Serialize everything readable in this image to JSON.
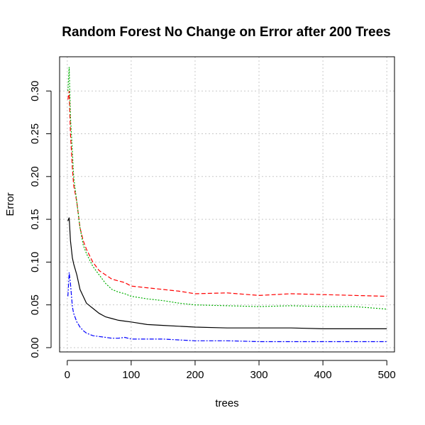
{
  "chart_data": {
    "type": "line",
    "title": "Random Forest No Change on Error after 200 Trees",
    "xlabel": "trees",
    "ylabel": "Error",
    "xlim": [
      -12,
      512
    ],
    "ylim": [
      -0.005,
      0.34
    ],
    "x_ticks": [
      0,
      100,
      200,
      300,
      400,
      500
    ],
    "x_tick_labels": [
      "0",
      "100",
      "200",
      "300",
      "400",
      "500"
    ],
    "y_ticks": [
      0.0,
      0.05,
      0.1,
      0.15,
      0.2,
      0.25,
      0.3
    ],
    "y_tick_labels": [
      "0.00",
      "0.05",
      "0.10",
      "0.15",
      "0.20",
      "0.25",
      "0.30"
    ],
    "grid": true,
    "series": [
      {
        "color": "#000000",
        "dash": "solid",
        "x": [
          1,
          3,
          5,
          8,
          10,
          15,
          20,
          25,
          30,
          40,
          50,
          60,
          70,
          80,
          90,
          100,
          125,
          150,
          175,
          200,
          250,
          300,
          350,
          400,
          450,
          500
        ],
        "values": [
          0.148,
          0.152,
          0.125,
          0.105,
          0.098,
          0.085,
          0.068,
          0.06,
          0.052,
          0.046,
          0.04,
          0.036,
          0.034,
          0.032,
          0.031,
          0.03,
          0.027,
          0.026,
          0.025,
          0.024,
          0.023,
          0.023,
          0.023,
          0.022,
          0.022,
          0.022
        ]
      },
      {
        "color": "#ff0000",
        "dash": "dashed",
        "x": [
          1,
          3,
          5,
          8,
          10,
          15,
          20,
          25,
          30,
          40,
          50,
          60,
          70,
          80,
          90,
          100,
          125,
          150,
          175,
          200,
          250,
          300,
          350,
          400,
          450,
          500
        ],
        "values": [
          0.29,
          0.3,
          0.25,
          0.21,
          0.19,
          0.17,
          0.14,
          0.125,
          0.115,
          0.1,
          0.09,
          0.085,
          0.08,
          0.078,
          0.076,
          0.072,
          0.07,
          0.068,
          0.066,
          0.063,
          0.064,
          0.061,
          0.063,
          0.062,
          0.061,
          0.06
        ]
      },
      {
        "color": "#00b000",
        "dash": "dotted",
        "x": [
          1,
          3,
          5,
          8,
          10,
          15,
          20,
          25,
          30,
          40,
          50,
          60,
          70,
          80,
          90,
          100,
          125,
          150,
          175,
          200,
          250,
          300,
          350,
          400,
          450,
          500
        ],
        "values": [
          0.3,
          0.328,
          0.27,
          0.23,
          0.2,
          0.17,
          0.14,
          0.12,
          0.11,
          0.095,
          0.085,
          0.075,
          0.068,
          0.065,
          0.063,
          0.06,
          0.057,
          0.055,
          0.052,
          0.05,
          0.049,
          0.048,
          0.049,
          0.048,
          0.048,
          0.045
        ]
      },
      {
        "color": "#0000ff",
        "dash": "dashdot",
        "x": [
          1,
          3,
          5,
          8,
          10,
          15,
          20,
          25,
          30,
          40,
          50,
          60,
          70,
          80,
          90,
          100,
          125,
          150,
          175,
          200,
          250,
          300,
          350,
          400,
          450,
          500
        ],
        "values": [
          0.06,
          0.088,
          0.075,
          0.048,
          0.04,
          0.03,
          0.024,
          0.02,
          0.017,
          0.014,
          0.013,
          0.012,
          0.011,
          0.011,
          0.012,
          0.01,
          0.01,
          0.01,
          0.009,
          0.008,
          0.008,
          0.007,
          0.007,
          0.007,
          0.007,
          0.007
        ]
      }
    ]
  }
}
